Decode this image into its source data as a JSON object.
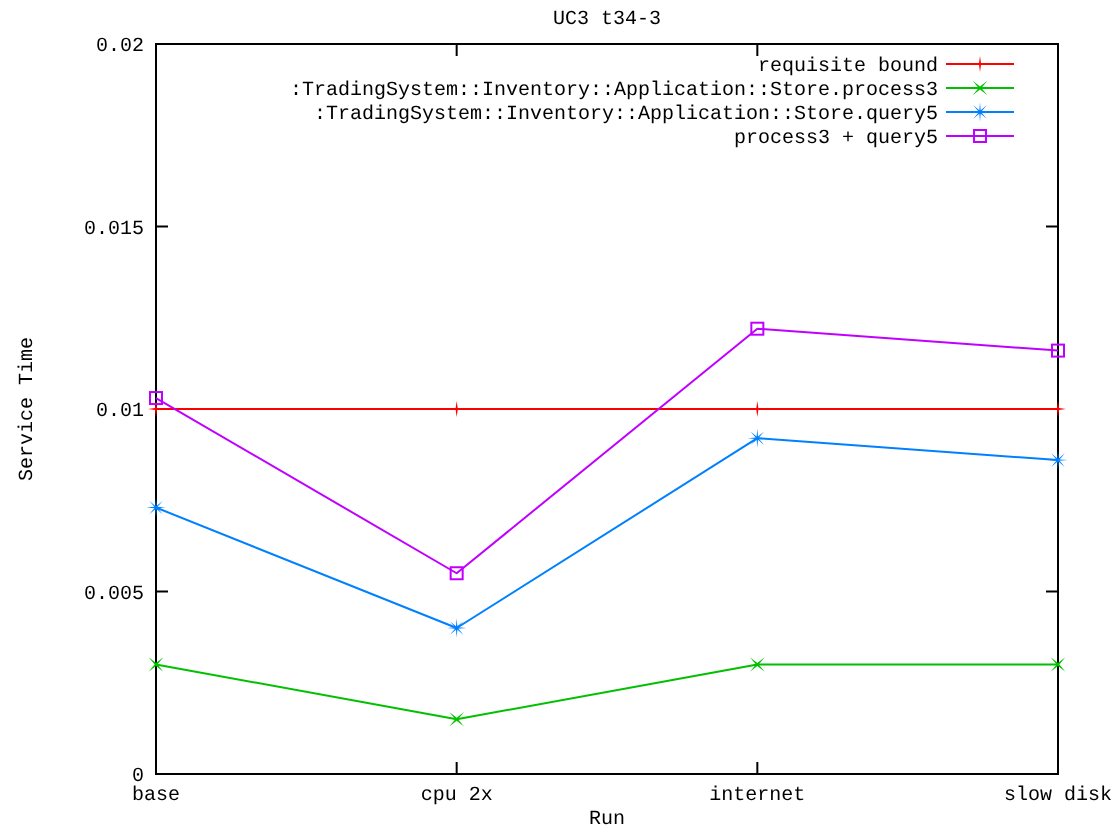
{
  "chart_data": {
    "type": "line",
    "title": "UC3 t34-3",
    "xlabel": "Run",
    "ylabel": "Service Time",
    "categories": [
      "base",
      "cpu 2x",
      "internet",
      "slow disk"
    ],
    "series": [
      {
        "name": "requisite bound",
        "color": "#ff0000",
        "marker": "plus",
        "values": [
          0.01,
          0.01,
          0.01,
          0.01
        ]
      },
      {
        "name": ":TradingSystem::Inventory::Application::Store.process3",
        "color": "#00c000",
        "marker": "cross",
        "values": [
          0.003,
          0.0015,
          0.003,
          0.003
        ]
      },
      {
        "name": ":TradingSystem::Inventory::Application::Store.query5",
        "color": "#0080ff",
        "marker": "star",
        "values": [
          0.0073,
          0.004,
          0.0092,
          0.0086
        ]
      },
      {
        "name": "process3 + query5",
        "color": "#c000ff",
        "marker": "square",
        "values": [
          0.0103,
          0.0055,
          0.0122,
          0.0116
        ]
      }
    ],
    "ylim": [
      0,
      0.02
    ],
    "yticks": [
      0,
      0.005,
      0.01,
      0.015,
      0.02
    ],
    "legend": "top right",
    "grid": false
  }
}
